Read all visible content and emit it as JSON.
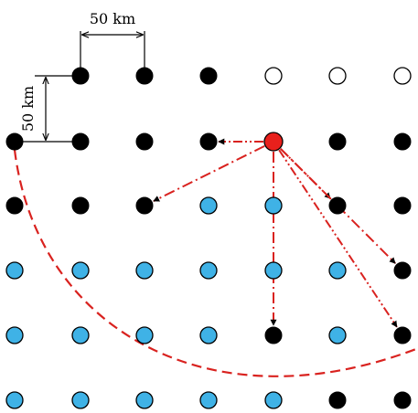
{
  "scale": {
    "horizontal_label": "50 km",
    "vertical_label": "50 km"
  },
  "colors": {
    "black": "#000000",
    "empty": "#ffffff",
    "blue": "#3fb2e6",
    "center": "#e8201c",
    "arrow": "#d9221f",
    "dimension": "#000000"
  },
  "grid": {
    "rows": [
      [
        null,
        "black",
        "black",
        "black",
        "empty",
        "empty",
        "empty"
      ],
      [
        "black",
        "black",
        "black",
        "black",
        "center",
        "black",
        "black"
      ],
      [
        "black",
        "black",
        "black",
        "blue",
        "blue",
        "black",
        "black"
      ],
      [
        "blue",
        "blue",
        "blue",
        "blue",
        "blue",
        "blue",
        "black"
      ],
      [
        "blue",
        "blue",
        "blue",
        "blue",
        "black",
        "blue",
        "black"
      ],
      [
        "blue",
        "blue",
        "blue",
        "blue",
        "blue",
        "black",
        "black"
      ]
    ]
  },
  "arrows": [
    {
      "from": [
        1,
        4
      ],
      "to": [
        1,
        3
      ],
      "style": "dash-dot-dot"
    },
    {
      "from": [
        1,
        4
      ],
      "to": [
        2,
        2
      ],
      "style": "dash-dot"
    },
    {
      "from": [
        1,
        4
      ],
      "to": [
        4,
        4
      ],
      "style": "dash-dot"
    },
    {
      "from": [
        1,
        4
      ],
      "to": [
        2,
        5
      ],
      "style": "dash-dot-dot"
    },
    {
      "from": [
        1,
        4
      ],
      "to": [
        3,
        6
      ],
      "style": "dash-dot"
    },
    {
      "from": [
        1,
        4
      ],
      "to": [
        4,
        6
      ],
      "style": "dash-dot-dot"
    }
  ],
  "boundary_arc": {
    "style": "dashed",
    "from_cell": [
      1,
      0
    ]
  }
}
